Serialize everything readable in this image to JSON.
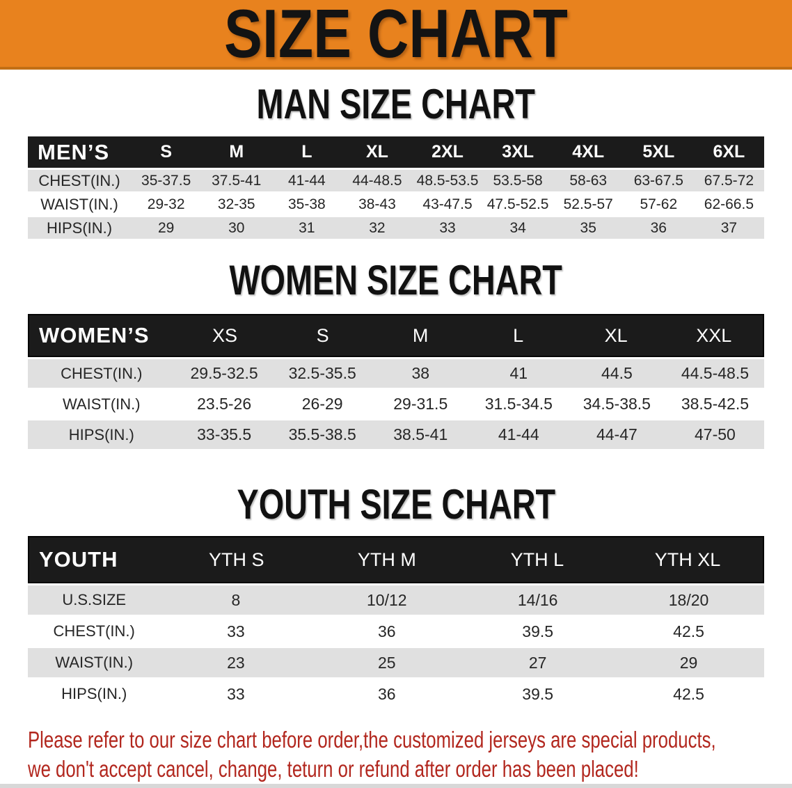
{
  "banner": {
    "title": "SIZE CHART"
  },
  "colors": {
    "banner_bg": "#E8821E",
    "banner_border": "#C26F15",
    "banner_text": "#131313",
    "header_bar_bg": "#1B1B1B",
    "header_bar_text": "#FFFFFF",
    "stripe_gray": "#E0E0E0",
    "heading_text": "#111111",
    "cell_text": "#262626",
    "disclaimer_red": "#B2271E",
    "bottom_strip": "#D8D8D8"
  },
  "chart_data": [
    {
      "type": "table",
      "title": "MAN SIZE CHART",
      "corner_label": "MEN’S",
      "columns": [
        "S",
        "M",
        "L",
        "XL",
        "2XL",
        "3XL",
        "4XL",
        "5XL",
        "6XL"
      ],
      "rows": [
        {
          "label": "CHEST(IN.)",
          "values": [
            "35-37.5",
            "37.5-41",
            "41-44",
            "44-48.5",
            "48.5-53.5",
            "53.5-58",
            "58-63",
            "63-67.5",
            "67.5-72"
          ]
        },
        {
          "label": "WAIST(IN.)",
          "values": [
            "29-32",
            "32-35",
            "35-38",
            "38-43",
            "43-47.5",
            "47.5-52.5",
            "52.5-57",
            "57-62",
            "62-66.5"
          ]
        },
        {
          "label": "HIPS(IN.)",
          "values": [
            "29",
            "30",
            "31",
            "32",
            "33",
            "34",
            "35",
            "36",
            "37"
          ]
        }
      ]
    },
    {
      "type": "table",
      "title": "WOMEN SIZE CHART",
      "corner_label": "WOMEN’S",
      "columns": [
        "XS",
        "S",
        "M",
        "L",
        "XL",
        "XXL"
      ],
      "rows": [
        {
          "label": "CHEST(IN.)",
          "values": [
            "29.5-32.5",
            "32.5-35.5",
            "38",
            "41",
            "44.5",
            "44.5-48.5"
          ]
        },
        {
          "label": "WAIST(IN.)",
          "values": [
            "23.5-26",
            "26-29",
            "29-31.5",
            "31.5-34.5",
            "34.5-38.5",
            "38.5-42.5"
          ]
        },
        {
          "label": "HIPS(IN.)",
          "values": [
            "33-35.5",
            "35.5-38.5",
            "38.5-41",
            "41-44",
            "44-47",
            "47-50"
          ]
        }
      ]
    },
    {
      "type": "table",
      "title": "YOUTH SIZE CHART",
      "corner_label": "YOUTH",
      "columns": [
        "YTH S",
        "YTH M",
        "YTH L",
        "YTH XL"
      ],
      "rows": [
        {
          "label": "U.S.SIZE",
          "values": [
            "8",
            "10/12",
            "14/16",
            "18/20"
          ]
        },
        {
          "label": "CHEST(IN.)",
          "values": [
            "33",
            "36",
            "39.5",
            "42.5"
          ]
        },
        {
          "label": "WAIST(IN.)",
          "values": [
            "23",
            "25",
            "27",
            "29"
          ]
        },
        {
          "label": "HIPS(IN.)",
          "values": [
            "33",
            "36",
            "39.5",
            "42.5"
          ]
        }
      ]
    }
  ],
  "disclaimer": {
    "line1": "Please refer to our size chart before order,the customized jerseys are special products,",
    "line2": "we don't accept cancel, change, teturn or refund after order has been placed!"
  }
}
